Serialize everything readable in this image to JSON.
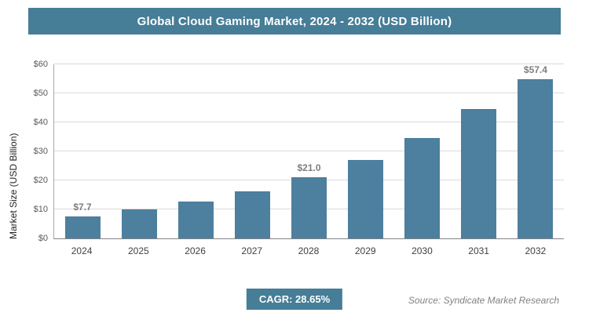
{
  "header": {
    "title": "Global Cloud Gaming Market, 2024 - 2032 (USD Billion)"
  },
  "chart_data": {
    "type": "bar",
    "title": "Global Cloud Gaming Market, 2024 - 2032 (USD Billion)",
    "categories": [
      "2024",
      "2025",
      "2026",
      "2027",
      "2028",
      "2029",
      "2030",
      "2031",
      "2032"
    ],
    "values": [
      7.7,
      9.9,
      12.7,
      16.3,
      21.0,
      27.0,
      34.7,
      44.6,
      57.4
    ],
    "data_labels": [
      "$7.7",
      "",
      "",
      "",
      "$21.0",
      "",
      "",
      "",
      "$57.4"
    ],
    "xlabel": "",
    "ylabel": "Market Size (USD Billion)",
    "ylim": [
      0,
      60
    ],
    "yticks": [
      "$0",
      "$10",
      "$20",
      "$30",
      "$40",
      "$50",
      "$60"
    ],
    "grid": true,
    "legend": false,
    "bar_color": "#4d7f9e"
  },
  "footer": {
    "cagr_label": "CAGR: 28.65%",
    "source": "Source: Syndicate Market Research"
  },
  "colors": {
    "accent": "#467d97",
    "bar": "#4d7f9e",
    "label_gray": "#7c7e81"
  }
}
